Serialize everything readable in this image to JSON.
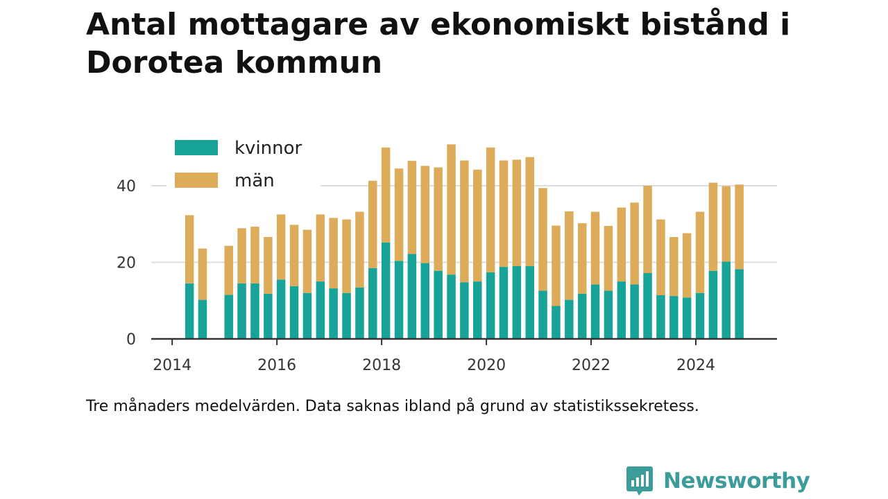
{
  "title": "Antal mottagare av ekonomiskt bistånd i Dorotea kommun",
  "note": "Tre månaders medelvärden. Data saknas ibland på grund av statistikssekretess.",
  "brand": {
    "name": "Newsworthy",
    "icon": "newsworthy-logo-icon"
  },
  "colors": {
    "kvinnor": "#17a398",
    "man": "#ddac5a",
    "grid": "#dddddd",
    "axis": "#333333",
    "text": "#333333"
  },
  "chart_data": {
    "type": "bar",
    "stacked": true,
    "title": "Antal mottagare av ekonomiskt bistånd i Dorotea kommun",
    "xlabel": "",
    "ylabel": "",
    "ylim": [
      0,
      55
    ],
    "xlim": [
      2013.6,
      2025.55
    ],
    "y_ticks": [
      0,
      20,
      40
    ],
    "x_ticks": [
      2014,
      2016,
      2018,
      2020,
      2022,
      2024
    ],
    "grid": "horizontal",
    "legend_position": "top-left",
    "x": [
      2014.33,
      2014.58,
      2015.08,
      2015.33,
      2015.58,
      2015.83,
      2016.08,
      2016.33,
      2016.58,
      2016.83,
      2017.08,
      2017.33,
      2017.58,
      2017.83,
      2018.08,
      2018.33,
      2018.58,
      2018.83,
      2019.08,
      2019.33,
      2019.58,
      2019.83,
      2020.08,
      2020.33,
      2020.58,
      2020.83,
      2021.08,
      2021.33,
      2021.58,
      2021.83,
      2022.08,
      2022.33,
      2022.58,
      2022.83,
      2023.08,
      2023.33,
      2023.58,
      2023.83,
      2024.08,
      2024.33,
      2024.58,
      2024.83
    ],
    "series": [
      {
        "name": "kvinnor",
        "color": "#17a398",
        "values": [
          14.5,
          10.2,
          11.5,
          14.5,
          14.5,
          11.8,
          15.5,
          13.8,
          12.0,
          15.0,
          13.2,
          12.0,
          13.4,
          18.5,
          25.2,
          20.4,
          22.2,
          19.8,
          17.8,
          16.8,
          14.8,
          15.0,
          17.4,
          18.8,
          19.0,
          19.0,
          12.6,
          8.6,
          10.2,
          11.8,
          14.2,
          12.6,
          15.0,
          14.2,
          17.2,
          11.4,
          11.2,
          10.8,
          12.0,
          17.8,
          20.2,
          18.2
        ]
      },
      {
        "name": "män",
        "color": "#ddac5a",
        "values": [
          17.8,
          13.4,
          12.8,
          14.4,
          14.8,
          14.8,
          17.0,
          16.0,
          16.5,
          17.5,
          18.4,
          19.2,
          19.8,
          22.8,
          24.8,
          24.1,
          24.3,
          25.4,
          27.0,
          34.0,
          31.8,
          29.2,
          32.6,
          27.8,
          27.8,
          28.5,
          26.8,
          21.0,
          23.1,
          18.4,
          19.0,
          16.9,
          19.3,
          21.4,
          22.8,
          19.8,
          15.4,
          16.8,
          21.2,
          23.0,
          19.7,
          22.1
        ]
      }
    ]
  }
}
